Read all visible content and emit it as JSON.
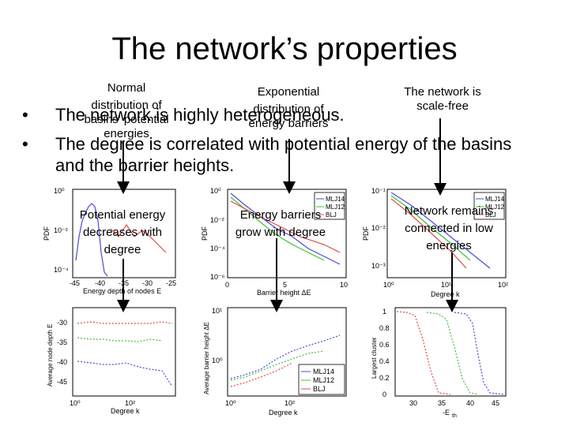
{
  "slide": {
    "title": "The network’s properties",
    "bullets": [
      {
        "marker": "•",
        "line1": "The network is highly heterogeneous.",
        "line2": ""
      },
      {
        "marker": "•",
        "line1": "The degree is correlated with potential energy of the basins",
        "line2": "and the barrier heights."
      }
    ],
    "notes": [
      {
        "line1": "Normal",
        "line2": "distribution of",
        "line3": "basins' potential",
        "line4": "energies"
      },
      {
        "line1": "Exponential",
        "line2": "distribution of",
        "line3": "energy barriers"
      },
      {
        "line1": "The network is",
        "line2": "scale-free"
      }
    ],
    "callouts": [
      {
        "line1": "Potential energy",
        "line2": "decreases with",
        "line3": "degree"
      },
      {
        "line1": "Energy barriers",
        "line2": "grow with degree"
      },
      {
        "line1": "Network remains",
        "line2": "connected in low",
        "line3": "energies"
      }
    ],
    "legend": [
      "MLJ14",
      "MLJ12",
      "BLJ"
    ],
    "colors": {
      "mlj14": "#4a4ad8",
      "mlj12": "#3cc03c",
      "blj": "#e04a4a",
      "arrow": "#000000"
    }
  },
  "plots": {
    "p1": {
      "ylabel": "PDF",
      "xlabel": "Energy depth of nodes E",
      "yticks": [
        "10⁰",
        "10⁻²",
        "10⁻⁴"
      ],
      "xticks": [
        "-45",
        "-40",
        "-35",
        "-30",
        "-25"
      ]
    },
    "p2": {
      "ylabel": "PDF",
      "xlabel": "Barrier height ΔE",
      "yticks": [
        "10⁰",
        "10⁻²",
        "10⁻⁴",
        "10⁻⁶"
      ],
      "xticks": [
        "0",
        "5",
        "10"
      ]
    },
    "p3": {
      "ylabel": "PDF",
      "xlabel": "Degree k",
      "yticks": [
        "10⁻¹",
        "10⁻²",
        "10⁻³"
      ],
      "xticks": [
        "10⁰",
        "10¹",
        "10²"
      ]
    },
    "p4": {
      "ylabel": "Average node depth E",
      "xlabel": "Degree k",
      "yticks": [
        "-30",
        "-35",
        "-40",
        "-45"
      ],
      "xticks": [
        "10⁰",
        "10²"
      ]
    },
    "p5": {
      "ylabel": "Average barrier height ΔE",
      "xlabel": "Degree k",
      "yticks": [
        "10¹",
        "10⁰"
      ],
      "xticks": [
        "10⁰",
        "10²"
      ]
    },
    "p6": {
      "ylabel": "Largest cluster",
      "xlabel": "-E",
      "xlabel_sub": "th",
      "yticks": [
        "1",
        "0.8",
        "0.6",
        "0.4",
        "0.2",
        "0"
      ],
      "xticks": [
        "30",
        "35",
        "40",
        "45"
      ]
    }
  }
}
